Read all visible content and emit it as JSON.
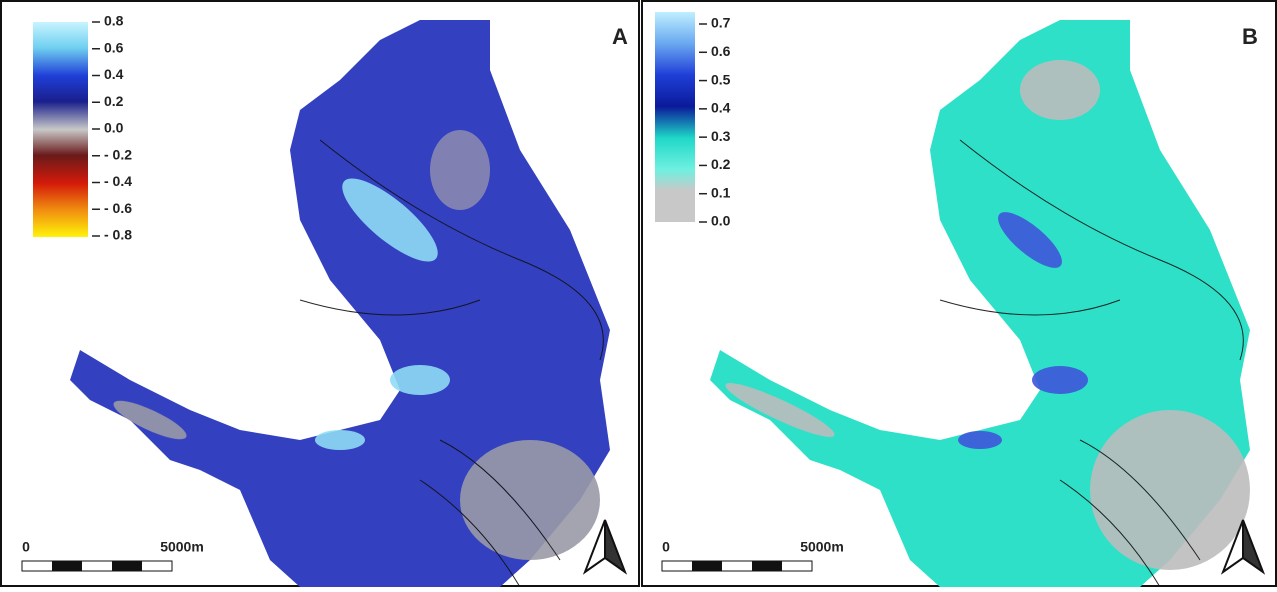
{
  "panels": [
    {
      "label": "A",
      "legend": {
        "labels": [
          "0.8",
          "0.6",
          "0.4",
          "0.2",
          "0.0",
          "- 0.2",
          "- 0.4",
          "- 0.6",
          "- 0.8"
        ]
      },
      "scale_bar": {
        "start": "0",
        "end": "5000m"
      }
    },
    {
      "label": "B",
      "legend": {
        "labels": [
          "0.7",
          "0.6",
          "0.5",
          "0.4",
          "0.3",
          "0.2",
          "0.1",
          "0.0"
        ]
      },
      "scale_bar": {
        "start": "0",
        "end": "5000m"
      }
    }
  ]
}
